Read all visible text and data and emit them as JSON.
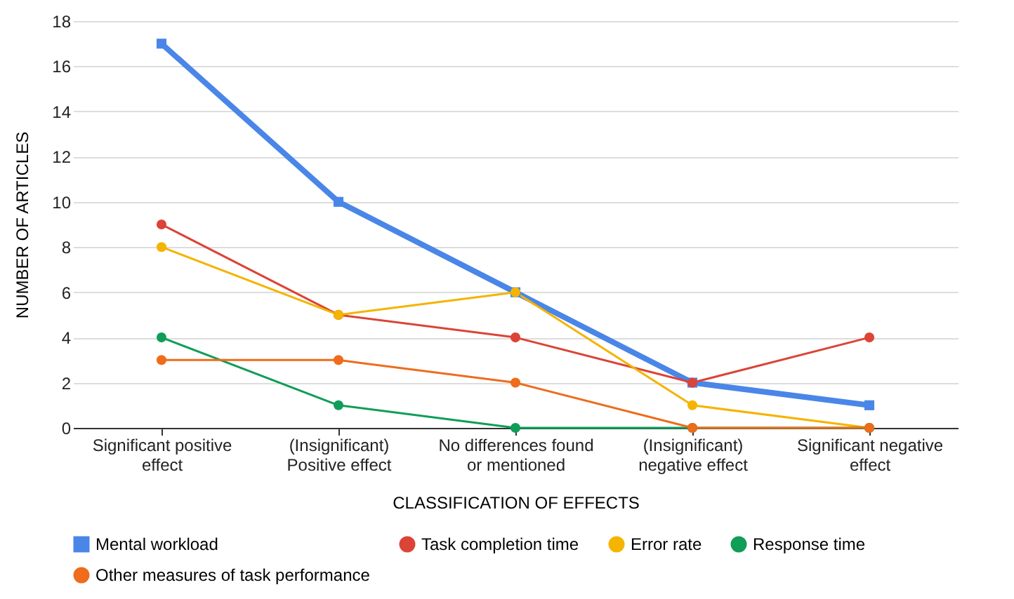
{
  "chart_data": {
    "type": "line",
    "xlabel": "CLASSIFICATION OF EFFECTS",
    "ylabel": "NUMBER OF ARTICLES",
    "categories": [
      "Significant positive effect",
      "(Insignificant) Positive effect",
      "No differences found or mentioned",
      "(Insignificant) negative effect",
      "Significant negative effect"
    ],
    "series": [
      {
        "name": "Mental workload",
        "color": "#4a86e8",
        "marker": "square",
        "values": [
          17,
          10,
          6,
          2,
          1
        ]
      },
      {
        "name": "Task completion time",
        "color": "#db4437",
        "values": [
          9,
          5,
          4,
          2,
          4
        ]
      },
      {
        "name": "Error rate",
        "color": "#f4b400",
        "values": [
          8,
          5,
          6,
          1,
          0
        ]
      },
      {
        "name": "Response time",
        "color": "#0f9d58",
        "values": [
          4,
          1,
          0,
          0,
          0
        ]
      },
      {
        "name": "Other measures of task performance",
        "color": "#ee6c1b",
        "values": [
          3,
          3,
          2,
          0,
          0
        ]
      }
    ],
    "ylim": [
      0,
      18
    ],
    "yticks": [
      0,
      2,
      4,
      6,
      8,
      10,
      12,
      14,
      16,
      18
    ],
    "grid": "y",
    "legend": "bottom",
    "marker": "circle",
    "line_style": "solid"
  }
}
